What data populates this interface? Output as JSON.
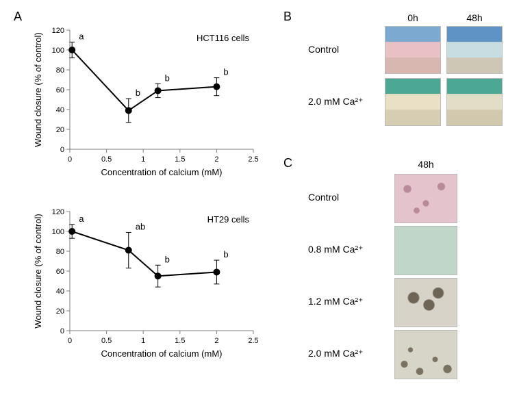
{
  "panels": {
    "A": {
      "label": "A"
    },
    "B": {
      "label": "B",
      "col_labels": [
        "0h",
        "48h"
      ],
      "row_labels": [
        "Control",
        "2.0 mM Ca²⁺"
      ]
    },
    "C": {
      "label": "C",
      "col_labels": [
        "48h"
      ],
      "row_labels": [
        "Control",
        "0.8 mM Ca²⁺",
        "1.2 mM Ca²⁺",
        "2.0 mM Ca²⁺"
      ]
    }
  },
  "chart_common": {
    "xlabel": "Concentration of calcium (mM)",
    "ylabel": "Wound closure (% of control)",
    "xlim": [
      0,
      2.5
    ],
    "xtick_step": 0.5,
    "ylim": [
      0,
      120
    ],
    "ytick_step": 20,
    "label_fontsize": 13,
    "tick_fontsize": 11,
    "marker": "circle",
    "marker_size": 7,
    "line_width": 2,
    "line_color": "#000000",
    "marker_fill": "#000000",
    "background_color": "#ffffff",
    "axis_color": "#808080",
    "tick_color": "#808080"
  },
  "charts": {
    "hct116": {
      "title": "HCT116 cells",
      "x": [
        0.03,
        0.8,
        1.2,
        2.0
      ],
      "y": [
        100,
        39,
        59,
        63
      ],
      "err": [
        8,
        12,
        7,
        9
      ],
      "point_labels": [
        "a",
        "b",
        "b",
        "b"
      ]
    },
    "ht29": {
      "title": "HT29 cells",
      "x": [
        0.03,
        0.8,
        1.2,
        2.0
      ],
      "y": [
        100,
        81,
        55,
        59
      ],
      "err": [
        7,
        18,
        11,
        12
      ],
      "point_labels": [
        "a",
        "ab",
        "b",
        "b"
      ]
    }
  },
  "micro": {
    "B": {
      "w": 82,
      "h": 70,
      "tiles": [
        {
          "row": 0,
          "col": 0,
          "top": "#7ba9cf",
          "mid": "#e9c0c4",
          "bot": "#d7b7b0"
        },
        {
          "row": 0,
          "col": 1,
          "top": "#5f93c6",
          "mid": "#c7dde2",
          "bot": "#cfc7b6"
        },
        {
          "row": 1,
          "col": 0,
          "top": "#4da795",
          "mid": "#e9e0c6",
          "bot": "#d7cdb2"
        },
        {
          "row": 1,
          "col": 1,
          "top": "#4da795",
          "mid": "#e2ddc6",
          "bot": "#d2c8ae"
        }
      ]
    },
    "C": {
      "w": 92,
      "h": 72,
      "tiles": [
        {
          "row": 0,
          "fill": "#e4c3cd",
          "tex": "bubble",
          "tex_color": "#b98a9a"
        },
        {
          "row": 1,
          "fill": "#bfd6c8",
          "tex": "none",
          "tex_color": "#9cb7a8"
        },
        {
          "row": 2,
          "fill": "#d8d3c9",
          "tex": "cluster",
          "tex_color": "#6f6557"
        },
        {
          "row": 3,
          "fill": "#d7d4c8",
          "tex": "scatter",
          "tex_color": "#797260"
        }
      ]
    }
  }
}
